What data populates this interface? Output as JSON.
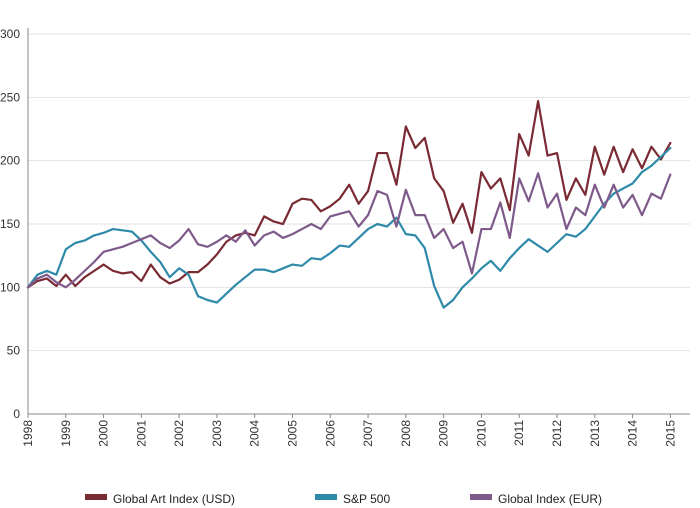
{
  "chart_data": {
    "type": "line",
    "title": "",
    "xlabel": "",
    "ylabel": "",
    "ylim": [
      0,
      300
    ],
    "xlim": [
      1998,
      2015.3
    ],
    "yticks": [
      0,
      50,
      100,
      150,
      200,
      250,
      300
    ],
    "xticks": [
      1998,
      1999,
      2000,
      2001,
      2002,
      2003,
      2004,
      2005,
      2006,
      2007,
      2008,
      2009,
      2010,
      2011,
      2012,
      2013,
      2014,
      2015
    ],
    "grid": "horizontal",
    "legend_position": "bottom",
    "series": [
      {
        "name": "Global Art Index (USD)",
        "color": "#7a2a33",
        "points": [
          [
            1998.0,
            100
          ],
          [
            1998.25,
            105
          ],
          [
            1998.5,
            107
          ],
          [
            1998.75,
            101
          ],
          [
            1999.0,
            110
          ],
          [
            1999.25,
            101
          ],
          [
            1999.5,
            108
          ],
          [
            1999.75,
            113
          ],
          [
            2000.0,
            118
          ],
          [
            2000.25,
            113
          ],
          [
            2000.5,
            111
          ],
          [
            2000.75,
            112
          ],
          [
            2001.0,
            105
          ],
          [
            2001.25,
            118
          ],
          [
            2001.5,
            108
          ],
          [
            2001.75,
            103
          ],
          [
            2002.0,
            106
          ],
          [
            2002.25,
            112
          ],
          [
            2002.5,
            112
          ],
          [
            2002.75,
            118
          ],
          [
            2003.0,
            126
          ],
          [
            2003.25,
            136
          ],
          [
            2003.5,
            141
          ],
          [
            2003.75,
            143
          ],
          [
            2004.0,
            141
          ],
          [
            2004.25,
            156
          ],
          [
            2004.5,
            152
          ],
          [
            2004.75,
            150
          ],
          [
            2005.0,
            166
          ],
          [
            2005.25,
            170
          ],
          [
            2005.5,
            169
          ],
          [
            2005.75,
            160
          ],
          [
            2006.0,
            164
          ],
          [
            2006.25,
            170
          ],
          [
            2006.5,
            181
          ],
          [
            2006.75,
            166
          ],
          [
            2007.0,
            176
          ],
          [
            2007.25,
            206
          ],
          [
            2007.5,
            206
          ],
          [
            2007.75,
            181
          ],
          [
            2008.0,
            227
          ],
          [
            2008.25,
            210
          ],
          [
            2008.5,
            218
          ],
          [
            2008.75,
            186
          ],
          [
            2009.0,
            176
          ],
          [
            2009.25,
            151
          ],
          [
            2009.5,
            166
          ],
          [
            2009.75,
            143
          ],
          [
            2010.0,
            191
          ],
          [
            2010.25,
            178
          ],
          [
            2010.5,
            186
          ],
          [
            2010.75,
            161
          ],
          [
            2011.0,
            221
          ],
          [
            2011.25,
            204
          ],
          [
            2011.5,
            247
          ],
          [
            2011.75,
            204
          ],
          [
            2012.0,
            206
          ],
          [
            2012.25,
            169
          ],
          [
            2012.5,
            186
          ],
          [
            2012.75,
            173
          ],
          [
            2013.0,
            211
          ],
          [
            2013.25,
            189
          ],
          [
            2013.5,
            211
          ],
          [
            2013.75,
            191
          ],
          [
            2014.0,
            209
          ],
          [
            2014.25,
            194
          ],
          [
            2014.5,
            211
          ],
          [
            2014.75,
            201
          ],
          [
            2015.0,
            214
          ]
        ]
      },
      {
        "name": "S&P 500",
        "color": "#2e8aa8",
        "points": [
          [
            1998.0,
            100
          ],
          [
            1998.25,
            110
          ],
          [
            1998.5,
            113
          ],
          [
            1998.75,
            110
          ],
          [
            1999.0,
            130
          ],
          [
            1999.25,
            135
          ],
          [
            1999.5,
            137
          ],
          [
            1999.75,
            141
          ],
          [
            2000.0,
            143
          ],
          [
            2000.25,
            146
          ],
          [
            2000.5,
            145
          ],
          [
            2000.75,
            144
          ],
          [
            2001.0,
            137
          ],
          [
            2001.25,
            128
          ],
          [
            2001.5,
            120
          ],
          [
            2001.75,
            108
          ],
          [
            2002.0,
            115
          ],
          [
            2002.25,
            110
          ],
          [
            2002.5,
            93
          ],
          [
            2002.75,
            90
          ],
          [
            2003.0,
            88
          ],
          [
            2003.25,
            95
          ],
          [
            2003.5,
            102
          ],
          [
            2003.75,
            108
          ],
          [
            2004.0,
            114
          ],
          [
            2004.25,
            114
          ],
          [
            2004.5,
            112
          ],
          [
            2004.75,
            115
          ],
          [
            2005.0,
            118
          ],
          [
            2005.25,
            117
          ],
          [
            2005.5,
            123
          ],
          [
            2005.75,
            122
          ],
          [
            2006.0,
            127
          ],
          [
            2006.25,
            133
          ],
          [
            2006.5,
            132
          ],
          [
            2006.75,
            139
          ],
          [
            2007.0,
            146
          ],
          [
            2007.25,
            150
          ],
          [
            2007.5,
            148
          ],
          [
            2007.75,
            155
          ],
          [
            2008.0,
            142
          ],
          [
            2008.25,
            141
          ],
          [
            2008.5,
            131
          ],
          [
            2008.75,
            101
          ],
          [
            2009.0,
            84
          ],
          [
            2009.25,
            90
          ],
          [
            2009.5,
            100
          ],
          [
            2009.75,
            107
          ],
          [
            2010.0,
            115
          ],
          [
            2010.25,
            121
          ],
          [
            2010.5,
            113
          ],
          [
            2010.75,
            123
          ],
          [
            2011.0,
            131
          ],
          [
            2011.25,
            138
          ],
          [
            2011.5,
            133
          ],
          [
            2011.75,
            128
          ],
          [
            2012.0,
            135
          ],
          [
            2012.25,
            142
          ],
          [
            2012.5,
            140
          ],
          [
            2012.75,
            146
          ],
          [
            2013.0,
            156
          ],
          [
            2013.25,
            166
          ],
          [
            2013.5,
            174
          ],
          [
            2013.75,
            178
          ],
          [
            2014.0,
            182
          ],
          [
            2014.25,
            191
          ],
          [
            2014.5,
            196
          ],
          [
            2014.75,
            203
          ],
          [
            2015.0,
            210
          ]
        ]
      },
      {
        "name": "Global Index (EUR)",
        "color": "#7e5a8a",
        "points": [
          [
            1998.0,
            100
          ],
          [
            1998.25,
            107
          ],
          [
            1998.5,
            110
          ],
          [
            1998.75,
            104
          ],
          [
            1999.0,
            100
          ],
          [
            1999.25,
            106
          ],
          [
            1999.5,
            113
          ],
          [
            1999.75,
            120
          ],
          [
            2000.0,
            128
          ],
          [
            2000.25,
            130
          ],
          [
            2000.5,
            132
          ],
          [
            2000.75,
            135
          ],
          [
            2001.0,
            138
          ],
          [
            2001.25,
            141
          ],
          [
            2001.5,
            135
          ],
          [
            2001.75,
            131
          ],
          [
            2002.0,
            137
          ],
          [
            2002.25,
            146
          ],
          [
            2002.5,
            134
          ],
          [
            2002.75,
            132
          ],
          [
            2003.0,
            136
          ],
          [
            2003.25,
            141
          ],
          [
            2003.5,
            136
          ],
          [
            2003.75,
            145
          ],
          [
            2004.0,
            133
          ],
          [
            2004.25,
            141
          ],
          [
            2004.5,
            144
          ],
          [
            2004.75,
            139
          ],
          [
            2005.0,
            142
          ],
          [
            2005.25,
            146
          ],
          [
            2005.5,
            150
          ],
          [
            2005.75,
            146
          ],
          [
            2006.0,
            156
          ],
          [
            2006.25,
            158
          ],
          [
            2006.5,
            160
          ],
          [
            2006.75,
            148
          ],
          [
            2007.0,
            157
          ],
          [
            2007.25,
            176
          ],
          [
            2007.5,
            173
          ],
          [
            2007.75,
            148
          ],
          [
            2008.0,
            177
          ],
          [
            2008.25,
            157
          ],
          [
            2008.5,
            157
          ],
          [
            2008.75,
            139
          ],
          [
            2009.0,
            146
          ],
          [
            2009.25,
            131
          ],
          [
            2009.5,
            136
          ],
          [
            2009.75,
            111
          ],
          [
            2010.0,
            146
          ],
          [
            2010.25,
            146
          ],
          [
            2010.5,
            167
          ],
          [
            2010.75,
            139
          ],
          [
            2011.0,
            186
          ],
          [
            2011.25,
            168
          ],
          [
            2011.5,
            190
          ],
          [
            2011.75,
            163
          ],
          [
            2012.0,
            174
          ],
          [
            2012.25,
            146
          ],
          [
            2012.5,
            163
          ],
          [
            2012.75,
            157
          ],
          [
            2013.0,
            181
          ],
          [
            2013.25,
            163
          ],
          [
            2013.5,
            181
          ],
          [
            2013.75,
            163
          ],
          [
            2014.0,
            173
          ],
          [
            2014.25,
            157
          ],
          [
            2014.5,
            174
          ],
          [
            2014.75,
            170
          ],
          [
            2015.0,
            189
          ]
        ]
      }
    ]
  }
}
